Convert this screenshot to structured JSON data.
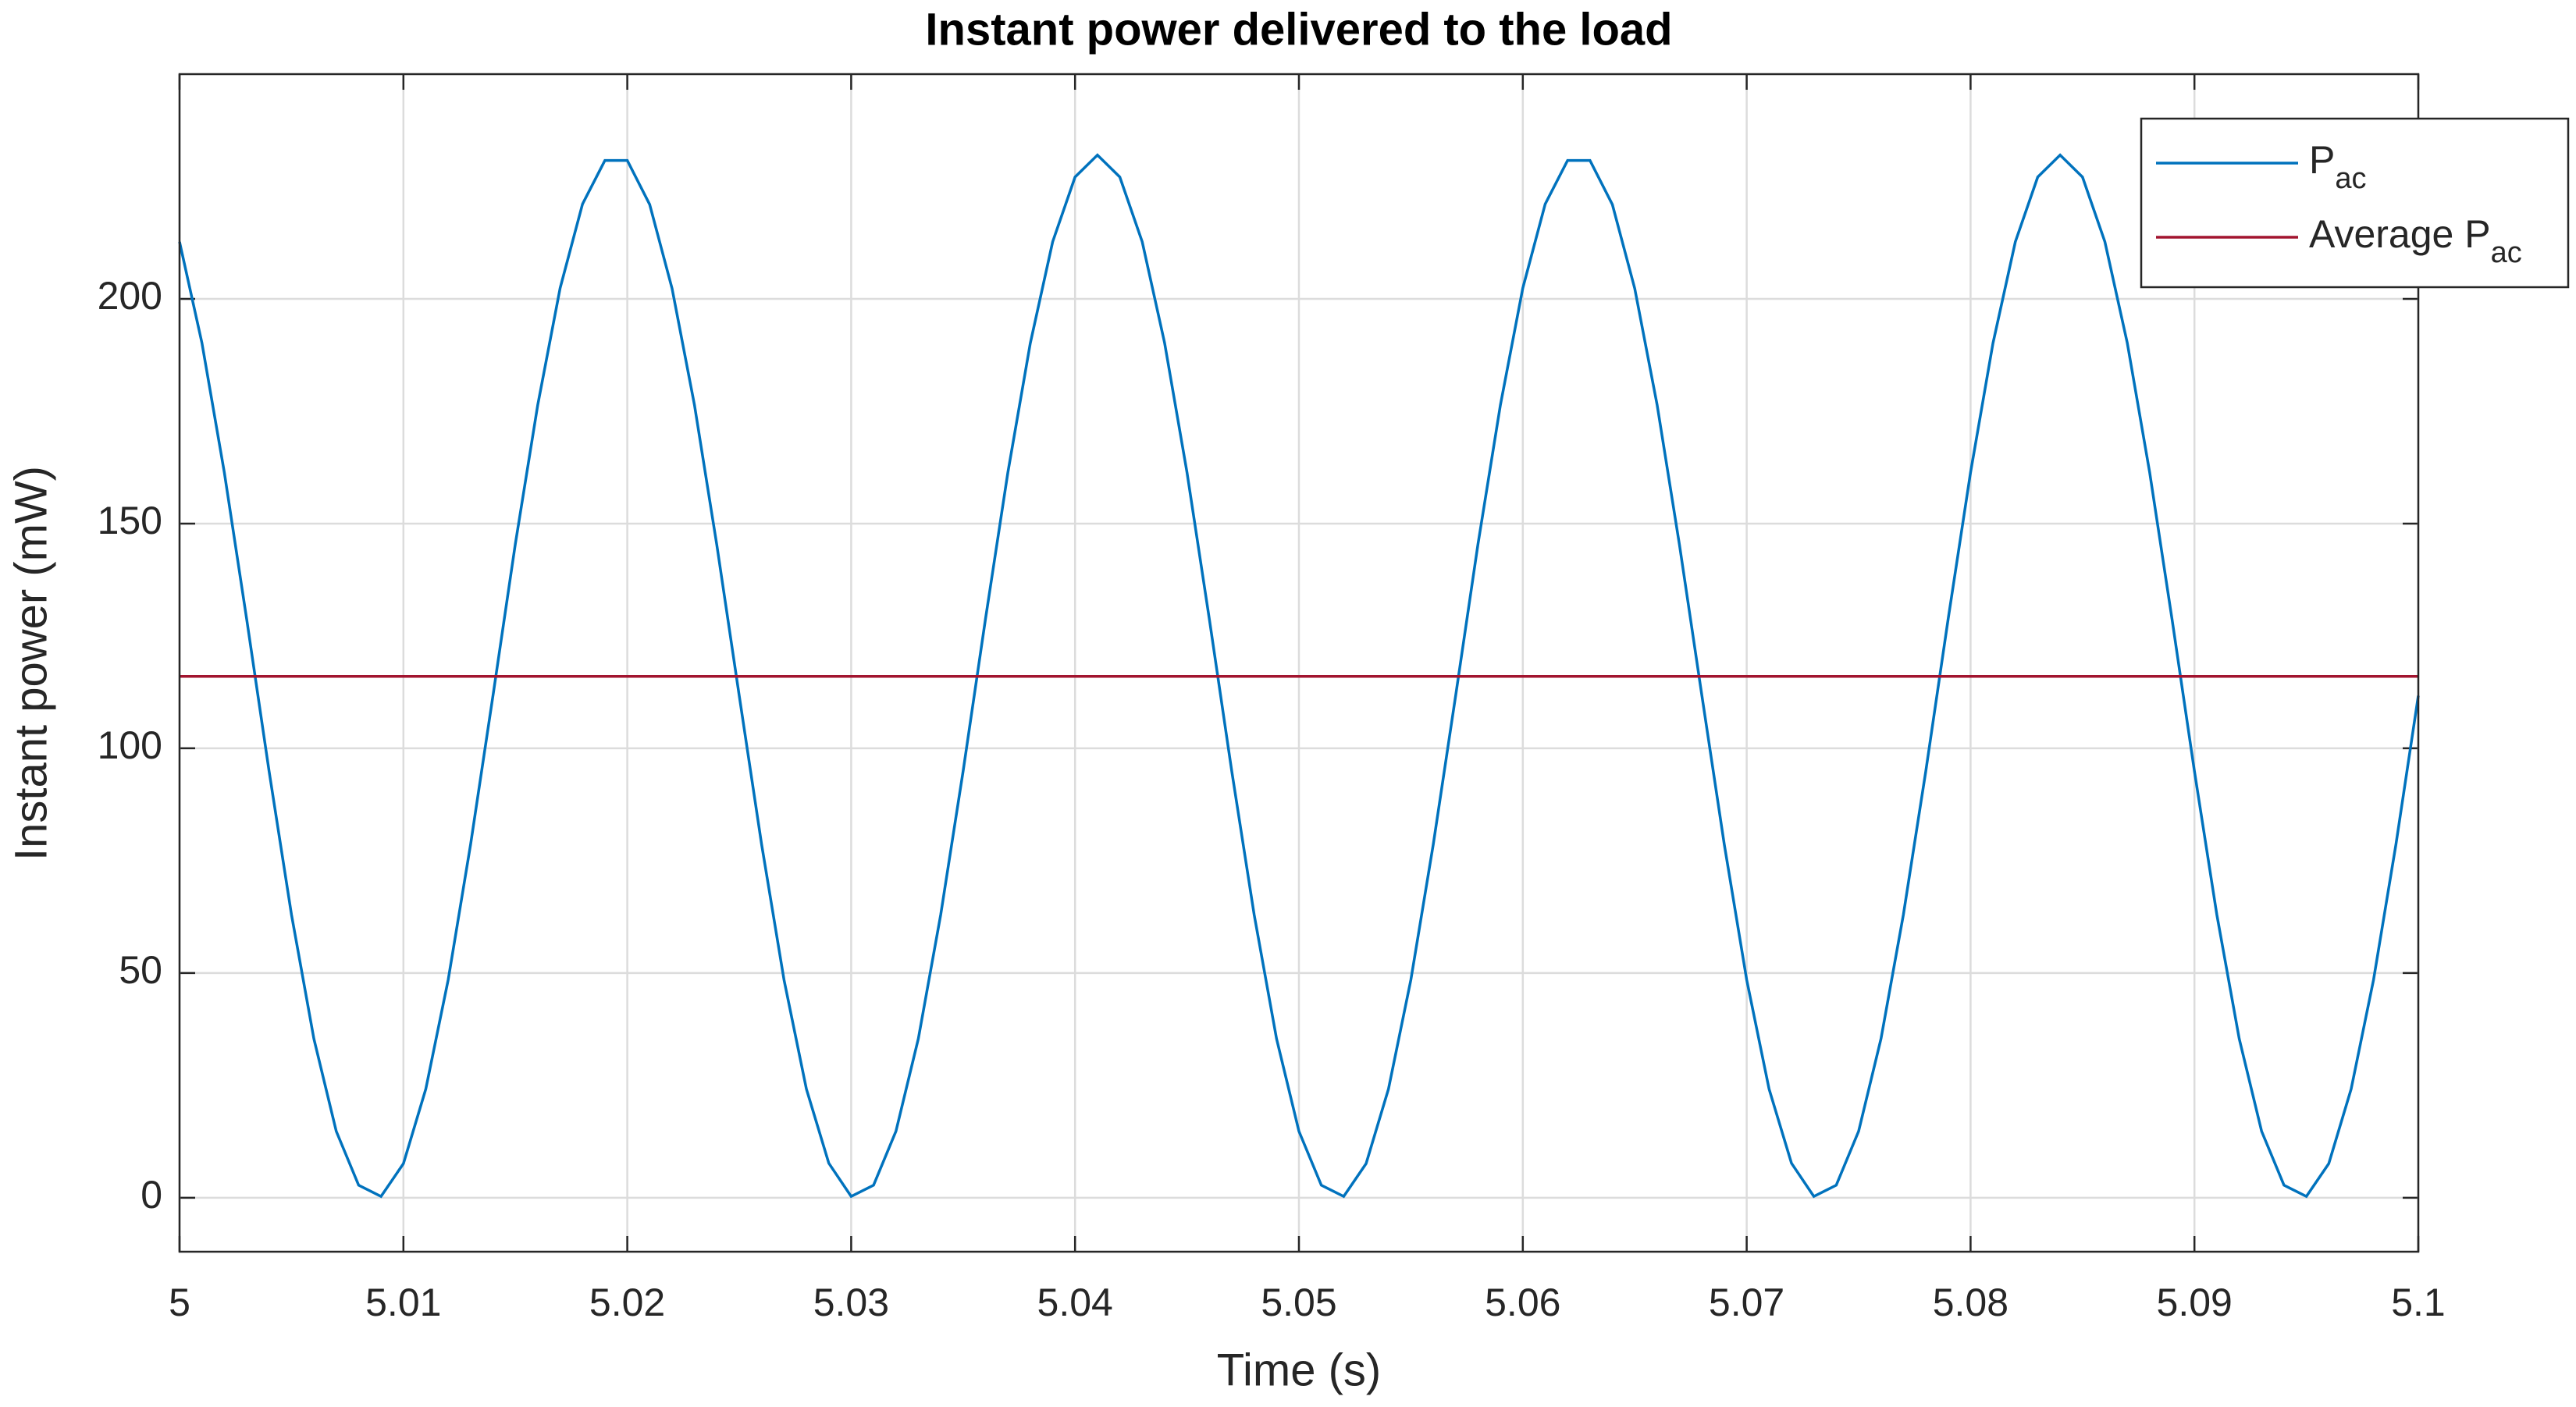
{
  "chart_data": {
    "type": "line",
    "title": "Instant power delivered to the load",
    "xlabel": "Time (s)",
    "ylabel": "Instant power (mW)",
    "x": [
      5,
      5.001,
      5.002,
      5.003,
      5.004,
      5.005,
      5.006,
      5.007,
      5.008,
      5.009,
      5.01,
      5.011,
      5.012,
      5.013,
      5.014,
      5.015,
      5.016,
      5.017,
      5.018,
      5.019,
      5.02,
      5.021,
      5.022,
      5.023,
      5.024,
      5.025,
      5.026,
      5.027,
      5.028,
      5.029,
      5.03,
      5.031,
      5.032,
      5.033,
      5.034,
      5.035,
      5.036,
      5.037,
      5.038,
      5.039,
      5.04,
      5.041,
      5.042,
      5.043,
      5.044,
      5.045,
      5.046,
      5.047,
      5.048,
      5.049,
      5.05,
      5.051,
      5.052,
      5.053,
      5.054,
      5.055,
      5.056,
      5.057,
      5.058,
      5.059,
      5.06,
      5.061,
      5.062,
      5.063,
      5.064,
      5.065,
      5.066,
      5.067,
      5.068,
      5.069,
      5.07,
      5.071,
      5.072,
      5.073,
      5.074,
      5.075,
      5.076,
      5.077,
      5.078,
      5.079,
      5.08,
      5.081,
      5.082,
      5.083,
      5.084,
      5.085,
      5.086,
      5.087,
      5.088,
      5.089,
      5.09,
      5.091,
      5.092,
      5.093,
      5.094,
      5.095,
      5.096,
      5.097,
      5.098,
      5.099,
      5.1
    ],
    "series": [
      {
        "name": "Pac",
        "color": "#0072BD",
        "values": [
          212.7,
          190.2,
          161.4,
          128.7,
          94.9,
          63.0,
          35.4,
          14.8,
          2.8,
          0.3,
          7.6,
          24.2,
          48.5,
          78.6,
          111.7,
          145.5,
          176.4,
          202.4,
          221.1,
          230.8,
          230.8,
          221.0,
          202.3,
          176.4,
          145.2,
          111.7,
          78.6,
          48.5,
          24.2,
          7.7,
          0.3,
          2.8,
          14.8,
          35.4,
          63.0,
          94.9,
          128.8,
          161.4,
          190.1,
          212.7,
          227.1,
          232.0,
          227.1,
          212.7,
          190.2,
          161.4,
          128.7,
          94.9,
          63.0,
          35.4,
          14.8,
          2.8,
          0.3,
          7.6,
          24.2,
          48.5,
          78.6,
          111.7,
          145.5,
          176.4,
          202.4,
          221.1,
          230.8,
          230.8,
          221.0,
          202.3,
          176.4,
          145.2,
          111.7,
          78.6,
          48.5,
          24.2,
          7.7,
          0.3,
          2.8,
          14.8,
          35.4,
          63.0,
          94.9,
          128.8,
          161.4,
          190.1,
          212.7,
          227.1,
          232.0,
          227.1,
          212.7,
          190.2,
          161.4,
          128.7,
          94.9,
          63.0,
          35.4,
          14.8,
          2.8,
          0.3,
          7.6,
          24.2,
          48.5,
          78.6,
          111.7
        ]
      },
      {
        "name": "Average Pac",
        "color": "#A2142F",
        "x": [
          5,
          5.1
        ],
        "values": [
          116,
          116
        ]
      }
    ],
    "xlim": [
      5,
      5.1
    ],
    "xticks": [
      5,
      5.01,
      5.02,
      5.03,
      5.04,
      5.05,
      5.06,
      5.07,
      5.08,
      5.09,
      5.1
    ],
    "ylim": [
      -12,
      250
    ],
    "yticks": [
      0,
      50,
      100,
      150,
      200
    ],
    "grid": true,
    "legend": "top-right"
  }
}
